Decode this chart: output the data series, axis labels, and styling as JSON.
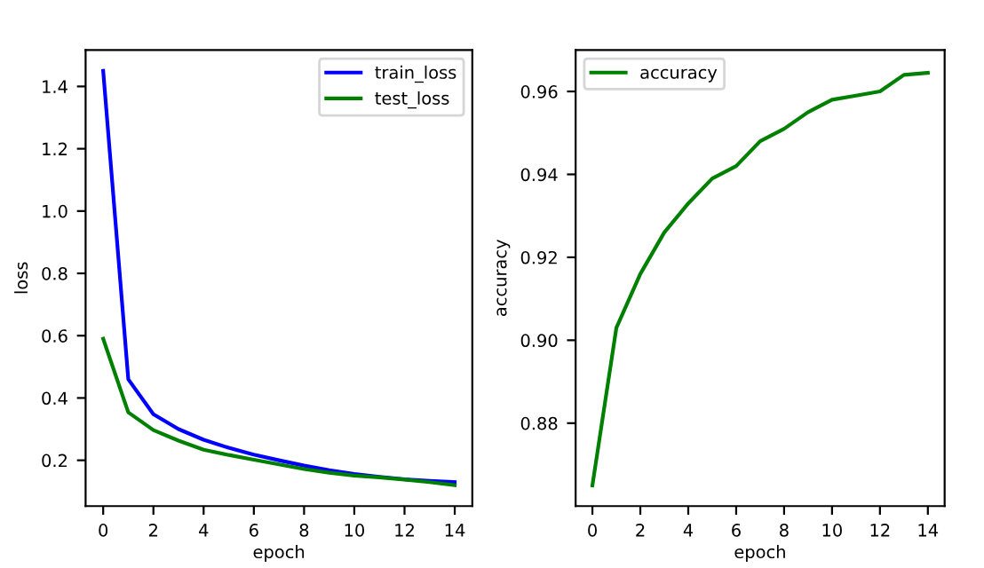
{
  "chart_data": [
    {
      "type": "line",
      "xlabel": "epoch",
      "ylabel": "loss",
      "x": [
        0,
        1,
        2,
        3,
        4,
        5,
        6,
        7,
        8,
        9,
        10,
        11,
        12,
        13,
        14
      ],
      "xlim": [
        -0.7,
        14.7
      ],
      "xticks": [
        0,
        2,
        4,
        6,
        8,
        10,
        12,
        14
      ],
      "ylim": [
        0.053,
        1.517
      ],
      "yticks": [
        {
          "value": 0.2,
          "label": "0.2"
        },
        {
          "value": 0.4,
          "label": "0.4"
        },
        {
          "value": 0.6,
          "label": "0.6"
        },
        {
          "value": 0.8,
          "label": "0.8"
        },
        {
          "value": 1.0,
          "label": "1.0"
        },
        {
          "value": 1.2,
          "label": "1.2"
        },
        {
          "value": 1.4,
          "label": "1.4"
        }
      ],
      "legend": "top right",
      "grid": false,
      "series": [
        {
          "name": "train_loss",
          "color": "#0000ff",
          "values": [
            1.45,
            0.46,
            0.348,
            0.3,
            0.266,
            0.24,
            0.218,
            0.2,
            0.183,
            0.168,
            0.156,
            0.147,
            0.139,
            0.134,
            0.13
          ]
        },
        {
          "name": "test_loss",
          "color": "#008000",
          "values": [
            0.59,
            0.354,
            0.297,
            0.263,
            0.234,
            0.217,
            0.202,
            0.187,
            0.172,
            0.16,
            0.151,
            0.145,
            0.138,
            0.13,
            0.12
          ]
        }
      ]
    },
    {
      "type": "line",
      "xlabel": "epoch",
      "ylabel": "accuracy",
      "x": [
        0,
        1,
        2,
        3,
        4,
        5,
        6,
        7,
        8,
        9,
        10,
        11,
        12,
        13,
        14
      ],
      "xlim": [
        -0.7,
        14.7
      ],
      "xticks": [
        0,
        2,
        4,
        6,
        8,
        10,
        12,
        14
      ],
      "ylim": [
        0.86,
        0.97
      ],
      "yticks": [
        {
          "value": 0.88,
          "label": "0.88"
        },
        {
          "value": 0.9,
          "label": "0.90"
        },
        {
          "value": 0.92,
          "label": "0.92"
        },
        {
          "value": 0.94,
          "label": "0.94"
        },
        {
          "value": 0.96,
          "label": "0.96"
        }
      ],
      "legend": "top left",
      "grid": false,
      "series": [
        {
          "name": "accuracy",
          "color": "#008000",
          "values": [
            0.865,
            0.903,
            0.916,
            0.926,
            0.933,
            0.939,
            0.942,
            0.948,
            0.951,
            0.955,
            0.958,
            0.959,
            0.96,
            0.964,
            0.9645
          ]
        }
      ]
    }
  ]
}
